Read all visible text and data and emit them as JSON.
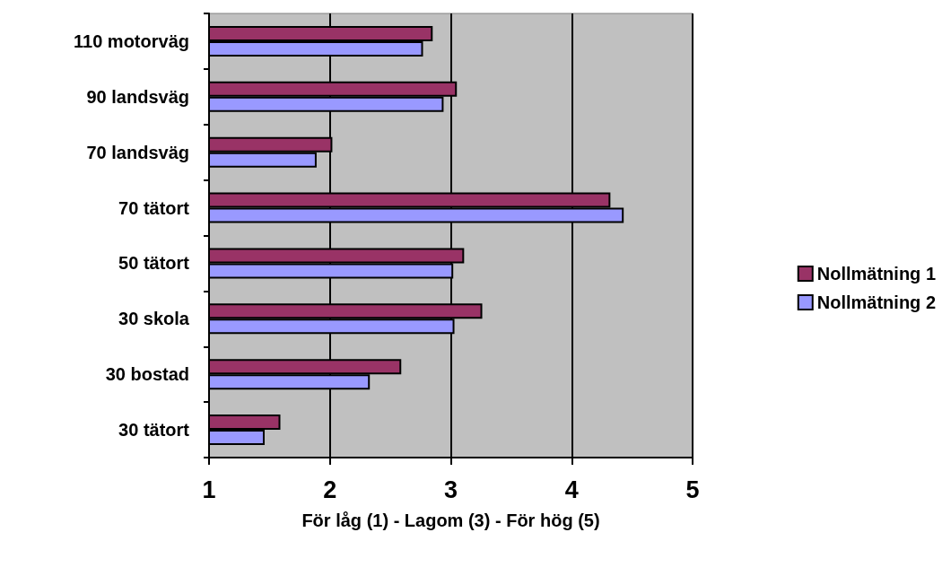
{
  "chart_data": {
    "type": "bar",
    "orientation": "horizontal",
    "xlabel": "För låg (1) - Lagom (3) - För hög (5)",
    "categories": [
      "110 motorväg",
      "90 landsväg",
      "70 landsväg",
      "70 tätort",
      "50 tätort",
      "30 skola",
      "30 bostad",
      "30 tätort"
    ],
    "series": [
      {
        "name": "Nollmätning 1",
        "color": "#993366",
        "values": [
          2.85,
          3.05,
          2.02,
          4.32,
          3.11,
          3.26,
          2.59,
          1.59
        ]
      },
      {
        "name": "Nollmätning 2",
        "color": "#9999ff",
        "values": [
          2.77,
          2.94,
          1.89,
          4.43,
          3.02,
          3.03,
          2.33,
          1.46
        ]
      }
    ],
    "xlim": [
      1,
      5
    ],
    "xticks": [
      1,
      2,
      3,
      4,
      5
    ],
    "grid": "x",
    "legend": "right"
  }
}
